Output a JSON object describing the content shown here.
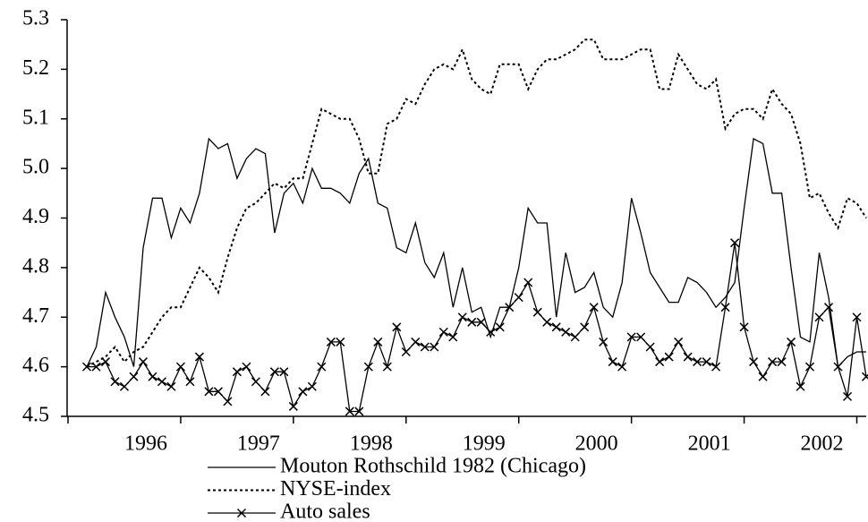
{
  "chart_data": {
    "type": "line",
    "categories": [
      null,
      null,
      null,
      null,
      null,
      null,
      "1996",
      null,
      null,
      null,
      null,
      null,
      null,
      null,
      null,
      null,
      null,
      null,
      "1997",
      null,
      null,
      null,
      null,
      null,
      null,
      null,
      null,
      null,
      null,
      null,
      "1998",
      null,
      null,
      null,
      null,
      null,
      null,
      null,
      null,
      null,
      null,
      null,
      "1999",
      null,
      null,
      null,
      null,
      null,
      null,
      null,
      null,
      null,
      null,
      null,
      "2000",
      null,
      null,
      null,
      null,
      null,
      null,
      null,
      null,
      null,
      null,
      null,
      "2001",
      null,
      null,
      null,
      null,
      null,
      null,
      null,
      null,
      null,
      null,
      null,
      "2002",
      null,
      null,
      null,
      null,
      null
    ],
    "ylim": [
      4.5,
      5.3
    ],
    "yticks": [
      {
        "value": 4.5,
        "label": "4.5"
      },
      {
        "value": 4.6,
        "label": "4.6"
      },
      {
        "value": 4.7,
        "label": "4.7"
      },
      {
        "value": 4.8,
        "label": "4.8"
      },
      {
        "value": 4.9,
        "label": "4.9"
      },
      {
        "value": 5.0,
        "label": "5.0"
      },
      {
        "value": 5.1,
        "label": "5.1"
      },
      {
        "value": 5.2,
        "label": "5.2"
      },
      {
        "value": 5.3,
        "label": "5.3"
      }
    ],
    "series": [
      {
        "name": "Mouton Rothschild 1982 (Chicago)",
        "color": "#000000",
        "dash": "solid",
        "marker": "none",
        "values": [
          4.6,
          4.64,
          4.75,
          4.7,
          4.66,
          4.6,
          4.84,
          4.94,
          4.94,
          4.86,
          4.92,
          4.89,
          4.95,
          5.06,
          5.04,
          5.05,
          4.98,
          5.02,
          5.04,
          5.03,
          4.87,
          4.95,
          4.97,
          4.93,
          5.0,
          4.96,
          4.96,
          4.95,
          4.93,
          4.99,
          5.02,
          4.93,
          4.92,
          4.84,
          4.83,
          4.89,
          4.81,
          4.78,
          4.83,
          4.72,
          4.8,
          4.71,
          4.72,
          4.66,
          4.72,
          4.72,
          4.8,
          4.92,
          4.89,
          4.89,
          4.7,
          4.83,
          4.75,
          4.76,
          4.79,
          4.72,
          4.7,
          4.77,
          4.94,
          4.87,
          4.79,
          4.76,
          4.73,
          4.73,
          4.78,
          4.77,
          4.75,
          4.72,
          4.74,
          4.77,
          4.92,
          5.06,
          5.05,
          4.95,
          4.95,
          4.8,
          4.66,
          4.65,
          4.83,
          4.74,
          4.6,
          4.62,
          4.63,
          4.63
        ]
      },
      {
        "name": "NYSE-index",
        "color": "#000000",
        "dash": "dotted",
        "marker": "none",
        "values": [
          4.6,
          4.61,
          4.62,
          4.64,
          4.61,
          4.63,
          4.64,
          4.67,
          4.7,
          4.72,
          4.72,
          4.76,
          4.8,
          4.78,
          4.75,
          4.82,
          4.88,
          4.92,
          4.93,
          4.95,
          4.97,
          4.96,
          4.98,
          4.98,
          5.05,
          5.12,
          5.11,
          5.1,
          5.1,
          5.06,
          4.99,
          4.99,
          5.09,
          5.1,
          5.14,
          5.13,
          5.17,
          5.2,
          5.21,
          5.2,
          5.24,
          5.18,
          5.16,
          5.15,
          5.21,
          5.21,
          5.21,
          5.16,
          5.2,
          5.22,
          5.22,
          5.23,
          5.24,
          5.26,
          5.26,
          5.22,
          5.22,
          5.22,
          5.23,
          5.24,
          5.24,
          5.16,
          5.16,
          5.23,
          5.2,
          5.17,
          5.16,
          5.18,
          5.08,
          5.11,
          5.12,
          5.12,
          5.1,
          5.16,
          5.13,
          5.11,
          5.05,
          4.94,
          4.95,
          4.91,
          4.88,
          4.94,
          4.93,
          4.9
        ]
      },
      {
        "name": "Auto sales",
        "color": "#000000",
        "dash": "solid",
        "marker": "x",
        "values": [
          4.6,
          4.6,
          4.61,
          4.57,
          4.56,
          4.58,
          4.61,
          4.58,
          4.57,
          4.56,
          4.6,
          4.57,
          4.62,
          4.55,
          4.55,
          4.53,
          4.59,
          4.6,
          4.57,
          4.55,
          4.59,
          4.59,
          4.52,
          4.55,
          4.56,
          4.6,
          4.65,
          4.65,
          4.51,
          4.51,
          4.6,
          4.65,
          4.6,
          4.68,
          4.63,
          4.65,
          4.64,
          4.64,
          4.67,
          4.66,
          4.7,
          4.69,
          4.69,
          4.67,
          4.68,
          4.72,
          4.74,
          4.77,
          4.71,
          4.69,
          4.68,
          4.67,
          4.66,
          4.68,
          4.72,
          4.65,
          4.61,
          4.6,
          4.66,
          4.66,
          4.64,
          4.61,
          4.62,
          4.65,
          4.62,
          4.61,
          4.61,
          4.6,
          4.72,
          4.85,
          4.68,
          4.61,
          4.58,
          4.61,
          4.61,
          4.65,
          4.56,
          4.6,
          4.7,
          4.72,
          4.6,
          4.54,
          4.7,
          4.58
        ]
      }
    ]
  }
}
